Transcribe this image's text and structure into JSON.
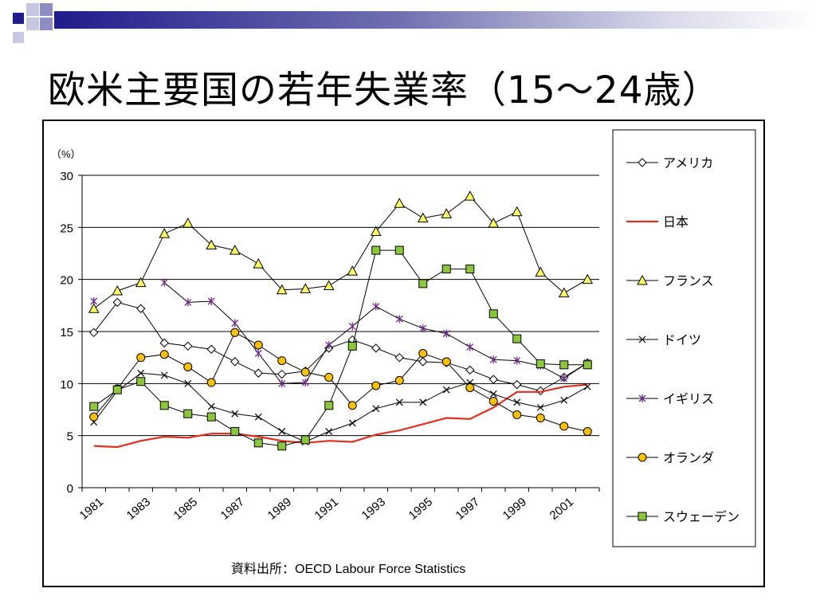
{
  "page": {
    "title": "欧米主要国の若年失業率（15～24歳）",
    "source": "資料出所：OECD Labour Force Statistics"
  },
  "chart_data": {
    "type": "line",
    "title": "",
    "xlabel": "",
    "ylabel": "（%）",
    "ylim": [
      0,
      30
    ],
    "yticks": [
      0,
      5,
      10,
      15,
      20,
      25,
      30
    ],
    "x": [
      1981,
      1982,
      1983,
      1984,
      1985,
      1986,
      1987,
      1988,
      1989,
      1990,
      1991,
      1992,
      1993,
      1994,
      1995,
      1996,
      1997,
      1998,
      1999,
      2000,
      2001,
      2002
    ],
    "xtick_labels": [
      "1981",
      "1983",
      "1985",
      "1987",
      "1989",
      "1991",
      "1993",
      "1995",
      "1997",
      "1999",
      "2001"
    ],
    "legend_position": "right",
    "grid": "horizontal",
    "series": [
      {
        "name": "アメリカ",
        "marker": "diamond",
        "color": "#000000",
        "values": [
          14.9,
          17.8,
          17.2,
          13.9,
          13.6,
          13.3,
          12.1,
          11.0,
          10.9,
          11.2,
          13.4,
          14.2,
          13.4,
          12.5,
          12.1,
          12.0,
          11.3,
          10.4,
          9.9,
          9.3,
          10.6,
          12.0
        ]
      },
      {
        "name": "日本",
        "marker": "none",
        "color": "#e03020",
        "values": [
          4.0,
          3.9,
          4.5,
          4.9,
          4.8,
          5.2,
          5.2,
          4.9,
          4.5,
          4.3,
          4.5,
          4.4,
          5.1,
          5.5,
          6.1,
          6.7,
          6.6,
          7.7,
          9.2,
          9.2,
          9.7,
          9.9
        ]
      },
      {
        "name": "フランス",
        "marker": "triangle",
        "color": "#000000",
        "values": [
          17.2,
          18.9,
          19.7,
          24.4,
          25.4,
          23.3,
          22.8,
          21.5,
          19.0,
          19.1,
          19.4,
          20.8,
          24.6,
          27.3,
          25.9,
          26.3,
          28.0,
          25.4,
          26.5,
          20.7,
          18.7,
          20.0
        ]
      },
      {
        "name": "ドイツ",
        "marker": "x",
        "color": "#000000",
        "values": [
          6.3,
          9.3,
          11.0,
          10.8,
          10.0,
          7.8,
          7.1,
          6.8,
          5.4,
          4.4,
          5.4,
          6.2,
          7.6,
          8.2,
          8.2,
          9.4,
          10.1,
          9.0,
          8.2,
          7.7,
          8.4,
          9.7
        ]
      },
      {
        "name": "イギリス",
        "marker": "star",
        "color": "#000000",
        "values": [
          17.9,
          null,
          null,
          19.7,
          17.8,
          17.9,
          15.8,
          12.9,
          10.0,
          10.1,
          13.7,
          15.5,
          17.4,
          16.2,
          15.3,
          14.8,
          13.5,
          12.3,
          12.2,
          11.7,
          10.5,
          12.0
        ]
      },
      {
        "name": "オランダ",
        "marker": "circle",
        "color": "#000000",
        "values": [
          6.8,
          9.5,
          12.5,
          12.8,
          11.6,
          10.1,
          14.9,
          13.7,
          12.2,
          11.1,
          10.6,
          7.9,
          9.8,
          10.3,
          12.9,
          12.1,
          9.6,
          8.3,
          7.0,
          6.7,
          5.9,
          5.4
        ]
      },
      {
        "name": "スウェーデン",
        "marker": "square",
        "color": "#000000",
        "values": [
          7.8,
          9.4,
          10.2,
          7.9,
          7.1,
          6.8,
          5.4,
          4.3,
          4.0,
          4.6,
          7.9,
          13.6,
          22.8,
          22.8,
          19.6,
          21.0,
          21.0,
          16.7,
          14.3,
          11.9,
          11.8,
          11.8
        ]
      }
    ]
  }
}
